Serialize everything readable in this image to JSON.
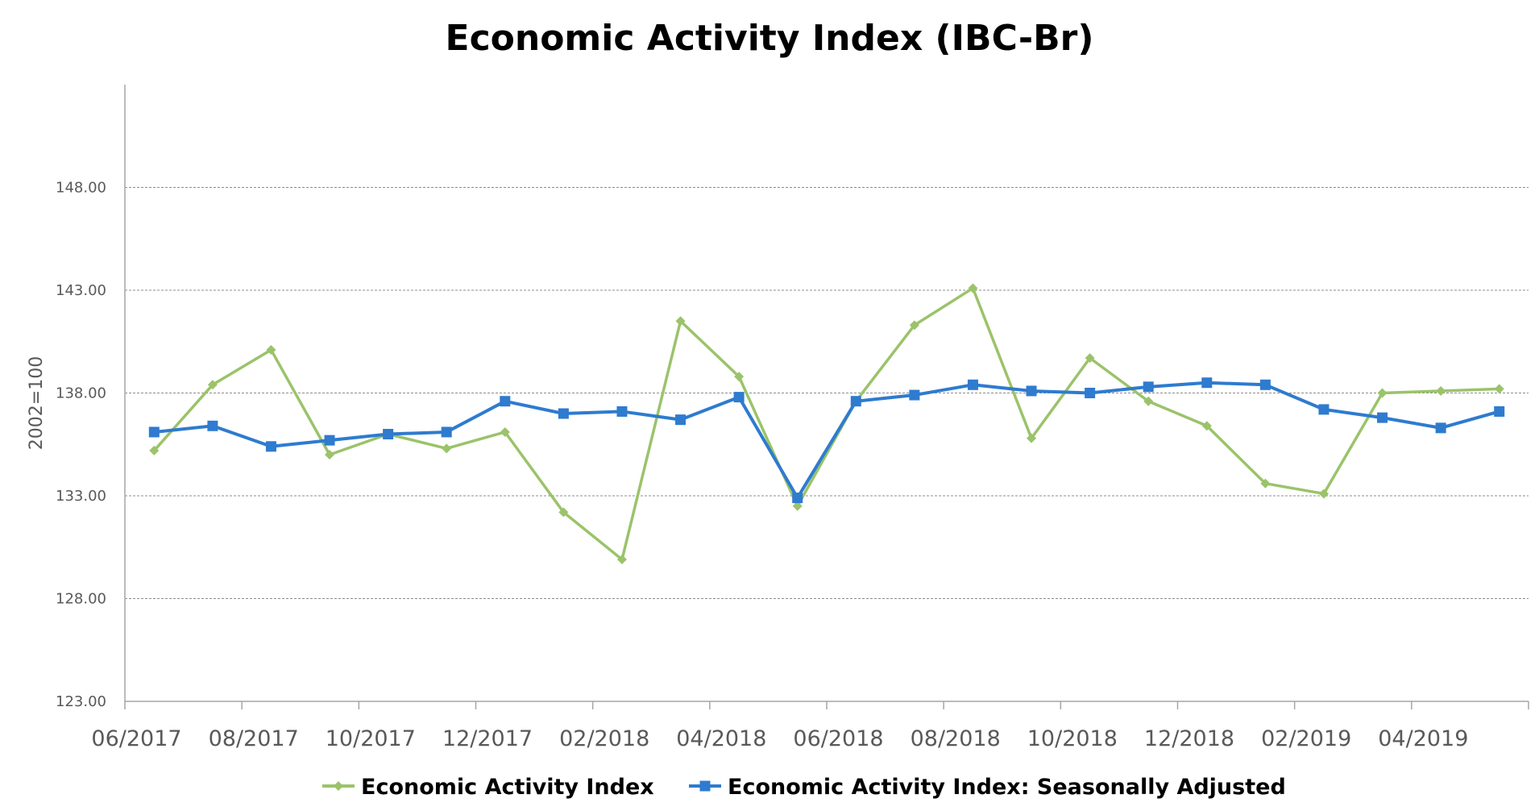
{
  "chart_data": {
    "type": "line",
    "title": "Economic Activity Index (IBC-Br)",
    "xlabel": "",
    "ylabel": "2002=100",
    "ylim": [
      123,
      153
    ],
    "yticks": [
      "123.00",
      "128.00",
      "133.00",
      "138.00",
      "143.00",
      "148.00"
    ],
    "xticks": [
      "06/2017",
      "08/2017",
      "10/2017",
      "12/2017",
      "02/2018",
      "04/2018",
      "06/2018",
      "08/2018",
      "10/2018",
      "12/2018",
      "02/2019",
      "04/2019"
    ],
    "grid": "horizontal dashed",
    "legend": "bottom",
    "x": [
      "06/2017",
      "07/2017",
      "08/2017",
      "09/2017",
      "10/2017",
      "11/2017",
      "12/2017",
      "01/2018",
      "02/2018",
      "03/2018",
      "04/2018",
      "05/2018",
      "06/2018",
      "07/2018",
      "08/2018",
      "09/2018",
      "10/2018",
      "11/2018",
      "12/2018",
      "01/2019",
      "02/2019",
      "03/2019",
      "04/2019",
      "05/2019"
    ],
    "series": [
      {
        "name": "Economic Activity Index",
        "color": "#9bc36a",
        "marker": "diamond",
        "values": [
          135.2,
          138.4,
          140.1,
          135.0,
          136.0,
          135.3,
          136.1,
          132.2,
          129.9,
          141.5,
          138.8,
          132.5,
          137.6,
          141.3,
          143.1,
          135.8,
          139.7,
          137.6,
          136.4,
          133.6,
          133.1,
          138.0,
          138.1,
          138.2
        ]
      },
      {
        "name": "Economic Activity Index: Seasonally Adjusted",
        "color": "#2e7bcf",
        "marker": "square",
        "values": [
          136.1,
          136.4,
          135.4,
          135.7,
          136.0,
          136.1,
          137.6,
          137.0,
          137.1,
          136.7,
          137.8,
          132.9,
          137.6,
          137.9,
          138.4,
          138.1,
          138.0,
          138.3,
          138.5,
          138.4,
          137.2,
          136.8,
          136.3,
          137.1
        ]
      }
    ]
  }
}
